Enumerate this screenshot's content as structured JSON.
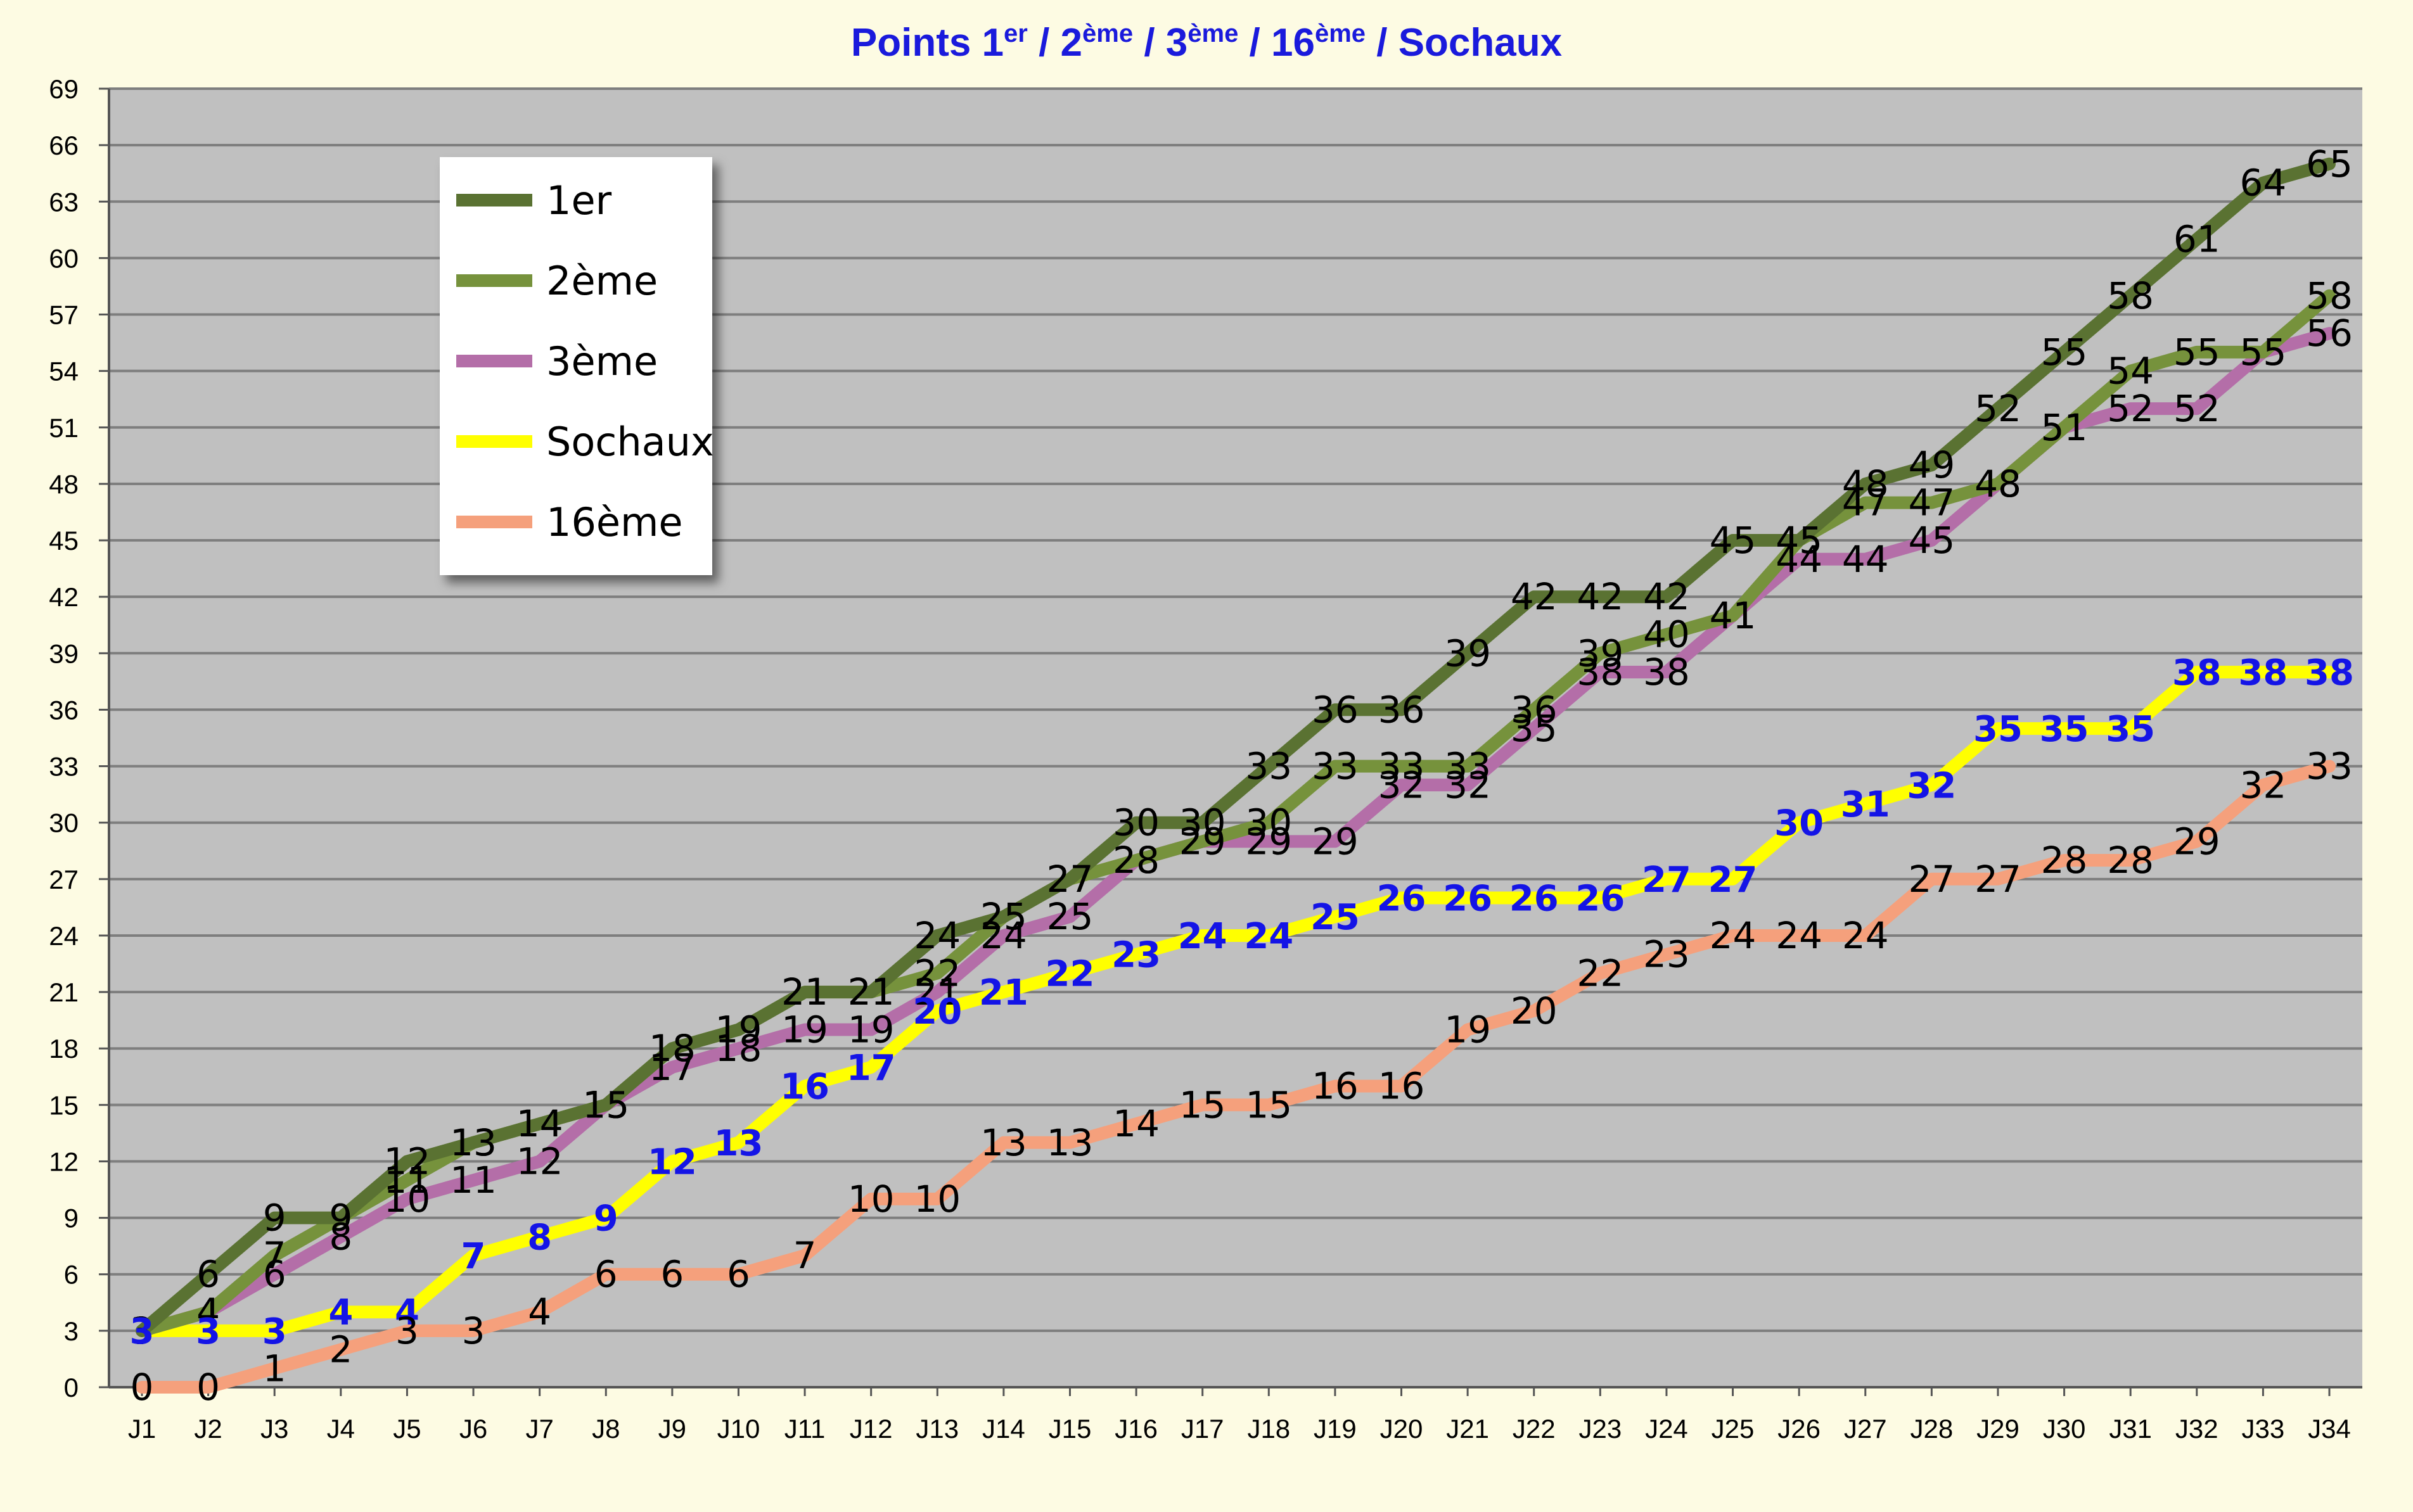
{
  "chart_data": {
    "type": "line",
    "title": "Points 1er / 2ème / 3ème / 16ème / Sochaux",
    "title_parts": [
      {
        "text": "Points 1",
        "sup": false
      },
      {
        "text": "er",
        "sup": true
      },
      {
        "text": " / 2",
        "sup": false
      },
      {
        "text": "ème",
        "sup": true
      },
      {
        "text": " / 3",
        "sup": false
      },
      {
        "text": "ème",
        "sup": true
      },
      {
        "text": " / 16",
        "sup": false
      },
      {
        "text": "ème",
        "sup": true
      },
      {
        "text": " / Sochaux",
        "sup": false
      }
    ],
    "xlabel": "",
    "ylabel": "",
    "ylim": [
      0,
      69
    ],
    "ytick_step": 3,
    "grid": true,
    "legend_position": "top-left",
    "background": "#c0c0c0",
    "categories": [
      "J1",
      "J2",
      "J3",
      "J4",
      "J5",
      "J6",
      "J7",
      "J8",
      "J9",
      "J10",
      "J11",
      "J12",
      "J13",
      "J14",
      "J15",
      "J16",
      "J17",
      "J18",
      "J19",
      "J20",
      "J21",
      "J22",
      "J23",
      "J24",
      "J25",
      "J26",
      "J27",
      "J28",
      "J29",
      "J30",
      "J31",
      "J32",
      "J33",
      "J34"
    ],
    "series": [
      {
        "name": "1er",
        "color": "#5a7232",
        "label_color": "#000000",
        "label_bold": false,
        "values": [
          3,
          6,
          9,
          9,
          12,
          13,
          14,
          15,
          18,
          19,
          21,
          21,
          24,
          25,
          27,
          30,
          30,
          33,
          36,
          36,
          39,
          42,
          42,
          42,
          45,
          45,
          48,
          49,
          52,
          55,
          58,
          61,
          64,
          65
        ]
      },
      {
        "name": "2ème",
        "color": "#76923c",
        "label_color": "#000000",
        "label_bold": false,
        "values": [
          3,
          4,
          7,
          9,
          11,
          13,
          14,
          15,
          18,
          19,
          21,
          21,
          22,
          25,
          27,
          28,
          29,
          30,
          33,
          33,
          33,
          36,
          39,
          40,
          41,
          45,
          47,
          47,
          48,
          51,
          54,
          55,
          55,
          58
        ]
      },
      {
        "name": "3ème",
        "color": "#b46ea8",
        "label_color": "#000000",
        "label_bold": false,
        "values": [
          3,
          4,
          6,
          8,
          10,
          11,
          12,
          15,
          17,
          18,
          19,
          19,
          21,
          24,
          25,
          28,
          29,
          29,
          29,
          32,
          32,
          35,
          38,
          38,
          41,
          44,
          44,
          45,
          48,
          51,
          52,
          52,
          55,
          56
        ]
      },
      {
        "name": "Sochaux",
        "color": "#ffff00",
        "label_color": "#1414e6",
        "label_bold": true,
        "values": [
          3,
          3,
          3,
          4,
          4,
          7,
          8,
          9,
          12,
          13,
          16,
          17,
          20,
          21,
          22,
          23,
          24,
          24,
          25,
          26,
          26,
          26,
          26,
          27,
          27,
          30,
          31,
          32,
          35,
          35,
          35,
          38,
          38,
          38
        ]
      },
      {
        "name": "16ème",
        "color": "#f5a07c",
        "label_color": "#000000",
        "label_bold": false,
        "values": [
          0,
          0,
          1,
          2,
          3,
          3,
          4,
          6,
          6,
          6,
          7,
          10,
          10,
          13,
          13,
          14,
          15,
          15,
          16,
          16,
          19,
          20,
          22,
          23,
          24,
          24,
          24,
          27,
          27,
          28,
          28,
          29,
          32,
          33
        ]
      }
    ]
  }
}
